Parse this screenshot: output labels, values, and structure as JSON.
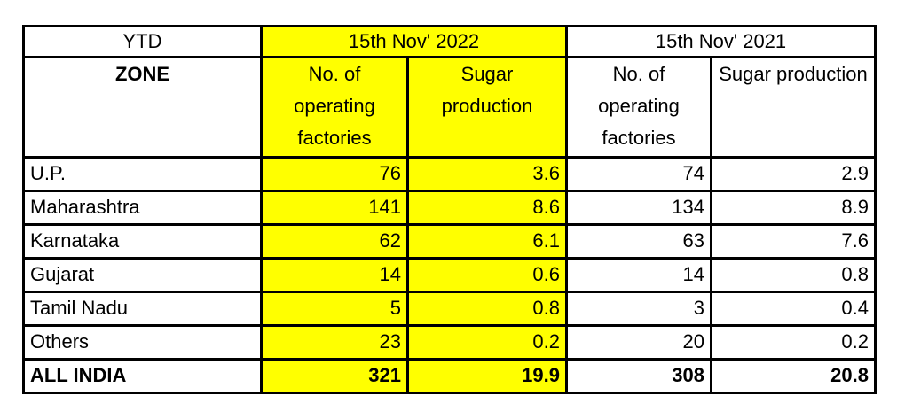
{
  "colors": {
    "highlight_yellow": "#FFFF00",
    "border": "#000000",
    "background": "#FFFFFF"
  },
  "chart_data": {
    "type": "table",
    "corner_header": "YTD",
    "row_header": "ZONE",
    "column_groups": [
      {
        "label": "15th Nov' 2022",
        "highlighted": true
      },
      {
        "label": "15th Nov' 2021",
        "highlighted": false
      }
    ],
    "columns": [
      "No. of operating factories",
      "Sugar production",
      "No. of operating factories",
      "Sugar production"
    ],
    "rows": [
      {
        "zone": "U.P.",
        "values": [
          76,
          3.6,
          74,
          2.9
        ],
        "is_total": false
      },
      {
        "zone": "Maharashtra",
        "values": [
          141,
          8.6,
          134,
          8.9
        ],
        "is_total": false
      },
      {
        "zone": "Karnataka",
        "values": [
          62,
          6.1,
          63,
          7.6
        ],
        "is_total": false
      },
      {
        "zone": "Gujarat",
        "values": [
          14,
          0.6,
          14,
          0.8
        ],
        "is_total": false
      },
      {
        "zone": "Tamil Nadu",
        "values": [
          5,
          0.8,
          3,
          0.4
        ],
        "is_total": false
      },
      {
        "zone": "Others",
        "values": [
          23,
          0.2,
          20,
          0.2
        ],
        "is_total": false
      },
      {
        "zone": "ALL INDIA",
        "values": [
          321,
          19.9,
          308,
          20.8
        ],
        "is_total": true
      }
    ]
  }
}
